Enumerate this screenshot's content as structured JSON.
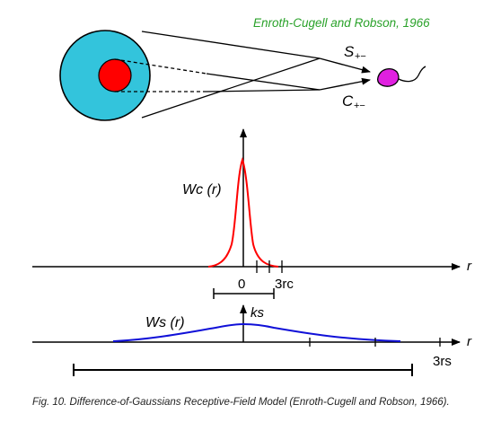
{
  "citation": "Enroth-Cugell and Robson, 1966",
  "cells": {
    "surround_label": "S",
    "surround_signs": "+−",
    "center_label": "C",
    "center_signs": "+−"
  },
  "center_plot": {
    "function_label": "Wc (r)",
    "axis_label": "r",
    "zero_label": "0",
    "extent_label": "3rc"
  },
  "surround_plot": {
    "function_label": "Ws (r)",
    "peak_label": "ks",
    "axis_label": "r",
    "extent_label": "3rs"
  },
  "caption": "Fig. 10. Difference-of-Gaussians Receptive-Field Model (Enroth-Cugell and Robson, 1966).",
  "colors": {
    "surround_fill": "#33c4dc",
    "center_fill": "#ff0000",
    "neuron_fill": "#e020e0",
    "citation_text": "#2aa22a",
    "center_curve": "#ff0000",
    "surround_curve": "#1010d8",
    "axes": "#000000"
  },
  "icons": {
    "surround_disk": "cyan-disk",
    "center_disk": "red-disk",
    "neuron": "magenta-cell-icon"
  }
}
